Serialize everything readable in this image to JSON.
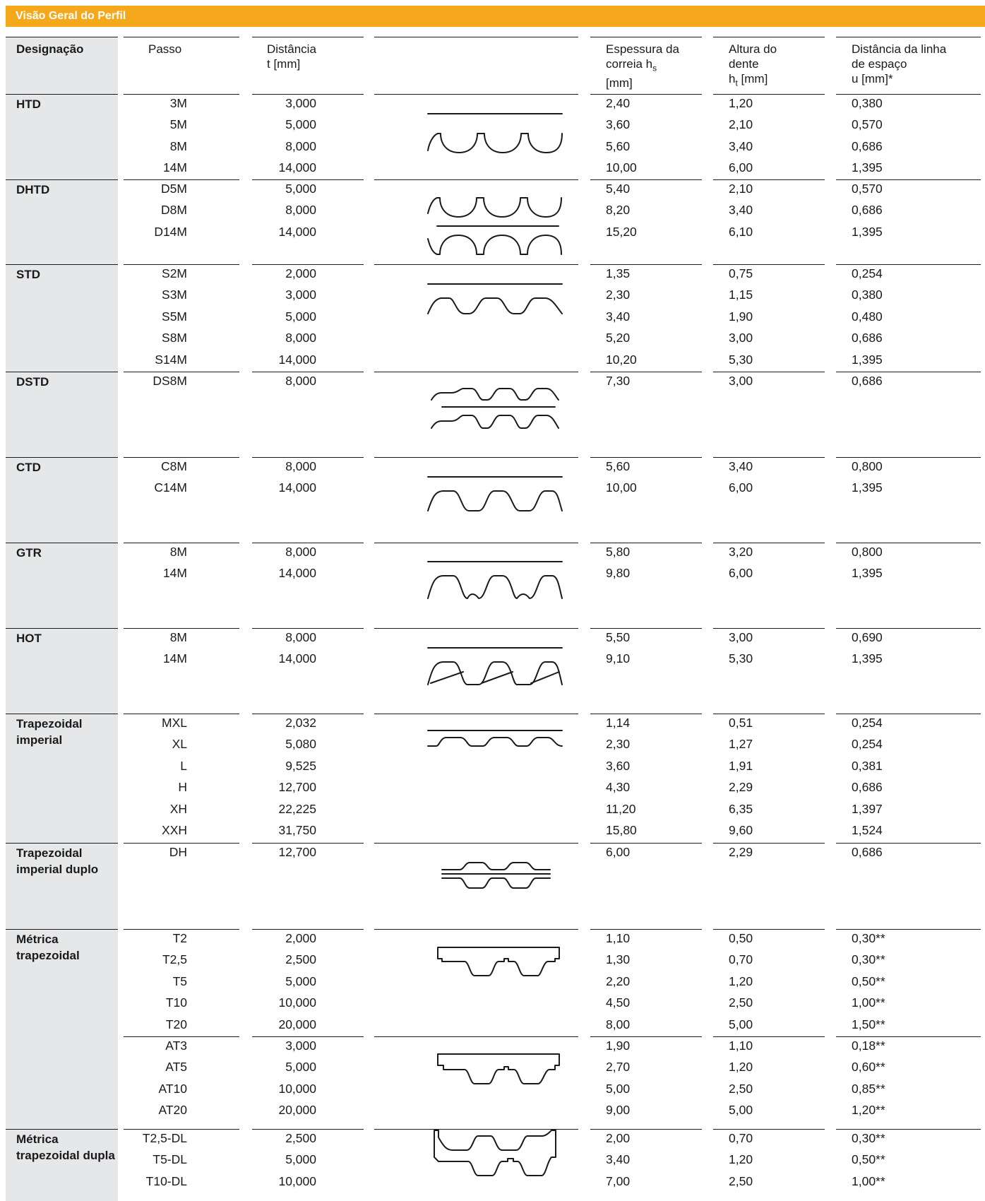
{
  "title": "Visão Geral do Perfil",
  "headers": {
    "designacao": "Designação",
    "passo": "Passo",
    "distancia": [
      "Distância",
      "t [mm]"
    ],
    "espessura": [
      "Espessura da",
      "correia h",
      "s",
      "[mm]"
    ],
    "altura": [
      "Altura do",
      "dente",
      "h",
      "t",
      " [mm]"
    ],
    "linha": [
      "Distância da linha",
      "de espaço",
      "u [mm]*"
    ]
  },
  "groups": [
    {
      "name": "HTD",
      "profile": "htd",
      "rows": [
        [
          "3M",
          "3,000",
          "2,40",
          "1,20",
          "0,380"
        ],
        [
          "5M",
          "5,000",
          "3,60",
          "2,10",
          "0,570"
        ],
        [
          "8M",
          "8,000",
          "5,60",
          "3,40",
          "0,686"
        ],
        [
          "14M",
          "14,000",
          "10,00",
          "6,00",
          "1,395"
        ]
      ]
    },
    {
      "name": "DHTD",
      "profile": "dhtd",
      "rows": [
        [
          "D5M",
          "5,000",
          "5,40",
          "2,10",
          "0,570"
        ],
        [
          "D8M",
          "8,000",
          "8,20",
          "3,40",
          "0,686"
        ],
        [
          "D14M",
          "14,000",
          "15,20",
          "6,10",
          "1,395"
        ]
      ]
    },
    {
      "name": "STD",
      "profile": "std",
      "rows": [
        [
          "S2M",
          "2,000",
          "1,35",
          "0,75",
          "0,254"
        ],
        [
          "S3M",
          "3,000",
          "2,30",
          "1,15",
          "0,380"
        ],
        [
          "S5M",
          "5,000",
          "3,40",
          "1,90",
          "0,480"
        ],
        [
          "S8M",
          "8,000",
          "5,20",
          "3,00",
          "0,686"
        ],
        [
          "S14M",
          "14,000",
          "10,20",
          "5,30",
          "1,395"
        ]
      ]
    },
    {
      "name": "DSTD",
      "profile": "dstd",
      "rows": [
        [
          "DS8M",
          "8,000",
          "7,30",
          "3,00",
          "0,686"
        ]
      ]
    },
    {
      "name": "CTD",
      "profile": "ctd",
      "rows": [
        [
          "C8M",
          "8,000",
          "5,60",
          "3,40",
          "0,800"
        ],
        [
          "C14M",
          "14,000",
          "10,00",
          "6,00",
          "1,395"
        ]
      ]
    },
    {
      "name": "GTR",
      "profile": "gtr",
      "rows": [
        [
          "8M",
          "8,000",
          "5,80",
          "3,20",
          "0,800"
        ],
        [
          "14M",
          "14,000",
          "9,80",
          "6,00",
          "1,395"
        ]
      ]
    },
    {
      "name": "HOT",
      "profile": "hot",
      "rows": [
        [
          "8M",
          "8,000",
          "5,50",
          "3,00",
          "0,690"
        ],
        [
          "14M",
          "14,000",
          "9,10",
          "5,30",
          "1,395"
        ]
      ]
    },
    {
      "name": "Trapezoidal imperial",
      "profile": "imp",
      "rows": [
        [
          "MXL",
          "2,032",
          "1,14",
          "0,51",
          "0,254"
        ],
        [
          "XL",
          "5,080",
          "2,30",
          "1,27",
          "0,254"
        ],
        [
          "L",
          "9,525",
          "3,60",
          "1,91",
          "0,381"
        ],
        [
          "H",
          "12,700",
          "4,30",
          "2,29",
          "0,686"
        ],
        [
          "XH",
          "22,225",
          "11,20",
          "6,35",
          "1,397"
        ],
        [
          "XXH",
          "31,750",
          "15,80",
          "9,60",
          "1,524"
        ]
      ]
    },
    {
      "name": "Trapezoidal imperial duplo",
      "profile": "impd",
      "rows": [
        [
          "DH",
          "12,700",
          "6,00",
          "2,29",
          "0,686"
        ]
      ]
    },
    {
      "name": "Métrica trapezoidal",
      "profile": "t",
      "rows": [
        [
          "T2",
          "2,000",
          "1,10",
          "0,50",
          "0,30**"
        ],
        [
          "T2,5",
          "2,500",
          "1,30",
          "0,70",
          "0,30**"
        ],
        [
          "T5",
          "5,000",
          "2,20",
          "1,20",
          "0,50**"
        ],
        [
          "T10",
          "10,000",
          "4,50",
          "2,50",
          "1,00**"
        ],
        [
          "T20",
          "20,000",
          "8,00",
          "5,00",
          "1,50**"
        ],
        [
          "AT3",
          "3,000",
          "1,90",
          "1,10",
          "0,18**"
        ],
        [
          "AT5",
          "5,000",
          "2,70",
          "1,20",
          "0,60**"
        ],
        [
          "AT10",
          "10,000",
          "5,00",
          "2,50",
          "0,85**"
        ],
        [
          "AT20",
          "20,000",
          "9,00",
          "5,00",
          "1,20**"
        ]
      ]
    },
    {
      "name": "Métrica trapezoidal dupla",
      "profile": "tdl",
      "rows": [
        [
          "T2,5-DL",
          "2,500",
          "2,00",
          "0,70",
          "0,30**"
        ],
        [
          "T5-DL",
          "5,000",
          "3,40",
          "1,20",
          "0,50**"
        ],
        [
          "T10-DL",
          "10,000",
          "7,00",
          "2,50",
          "1,00**"
        ]
      ]
    }
  ]
}
